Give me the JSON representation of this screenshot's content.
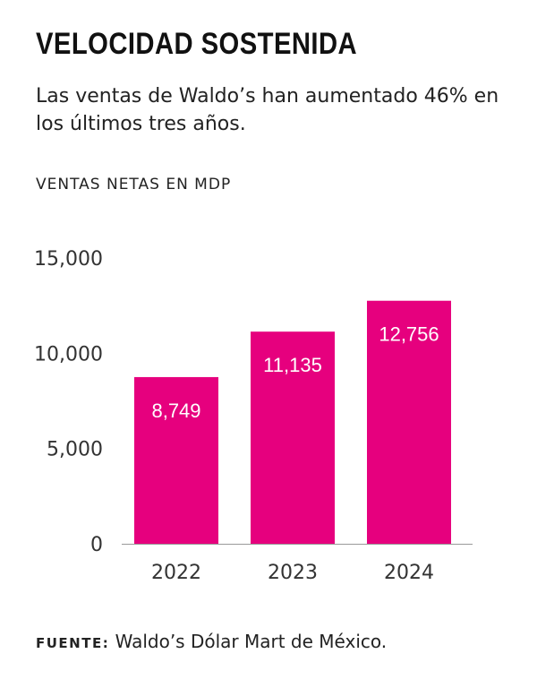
{
  "header": {
    "title": "VELOCIDAD SOSTENIDA",
    "subtitle": "Las ventas de Waldo’s han aumentado 46% en los últimos tres años."
  },
  "chart_data": {
    "type": "bar",
    "ylabel": "VENTAS NETAS EN MDP",
    "categories": [
      "2022",
      "2023",
      "2024"
    ],
    "values": [
      8749,
      11135,
      12756
    ],
    "value_labels": [
      "8,749",
      "11,135",
      "12,756"
    ],
    "ylim": [
      0,
      15000
    ],
    "yticks": [
      0,
      5000,
      10000,
      15000
    ],
    "ytick_labels": [
      "0",
      "5,000",
      "10,000",
      "15,000"
    ],
    "grid": false,
    "legend": "none",
    "bar_color": "#e6007e"
  },
  "footer": {
    "source_label": "FUENTE:",
    "source_text": "Waldo’s Dólar Mart de México."
  }
}
